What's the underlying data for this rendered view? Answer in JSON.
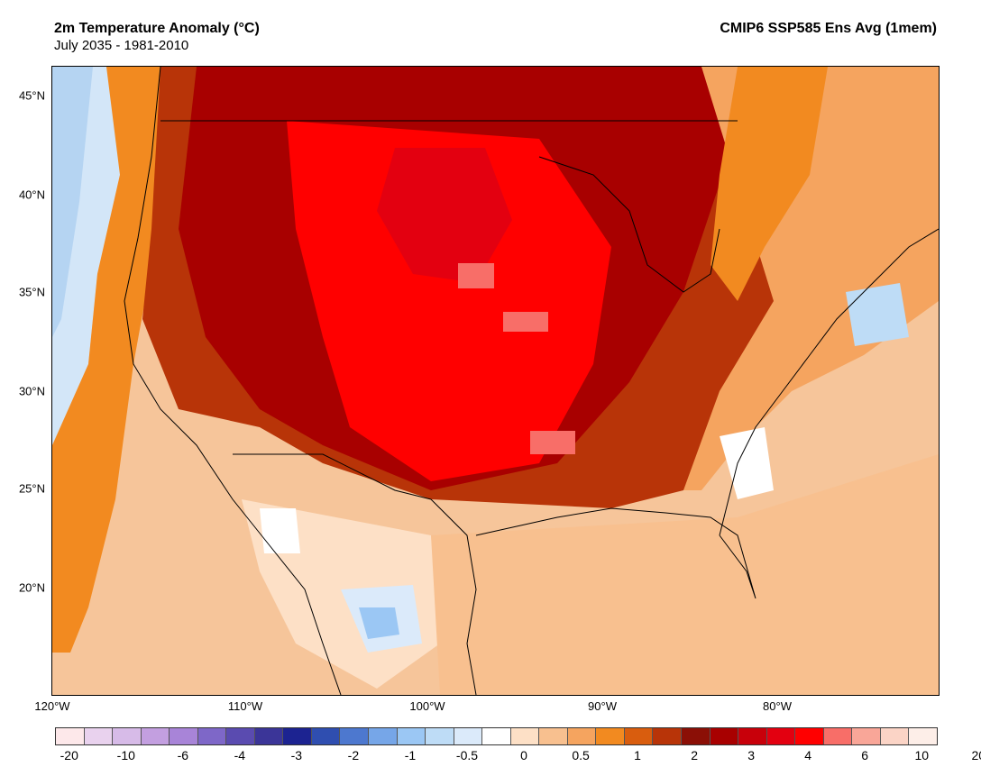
{
  "header": {
    "title": "2m Temperature Anomaly (°C)",
    "subtitle": "July 2035 - 1981-2010",
    "right_title": "CMIP6 SSP585 Ens Avg (1mem)"
  },
  "map": {
    "latitude_labels": [
      "45°N",
      "40°N",
      "35°N",
      "30°N",
      "25°N",
      "20°N"
    ],
    "longitude_labels": [
      "120°W",
      "110°W",
      "100°W",
      "90°W",
      "80°W"
    ]
  },
  "colorbar": {
    "colors": [
      "#fde8ea",
      "#e9d2ee",
      "#d7bbe8",
      "#c39fe0",
      "#a884d8",
      "#7e67c8",
      "#5a4bb0",
      "#3b3598",
      "#1c2391",
      "#2f4eb0",
      "#4d78cf",
      "#76a6e8",
      "#9bc7f4",
      "#bedcf6",
      "#dbeafa",
      "#ffffff",
      "#fde0c6",
      "#f8c08f",
      "#f5a45f",
      "#f28a20",
      "#d95d0e",
      "#b83408",
      "#8b0f06",
      "#a80000",
      "#c8000a",
      "#e30010",
      "#ff0000",
      "#f86e68",
      "#f9a698",
      "#fbd4c6",
      "#fdeee8"
    ],
    "labels": [
      "-20",
      "-10",
      "-6",
      "-4",
      "-3",
      "-2",
      "-1",
      "-0.5",
      "0",
      "0.5",
      "1",
      "2",
      "3",
      "4",
      "6",
      "10",
      "20"
    ]
  }
}
